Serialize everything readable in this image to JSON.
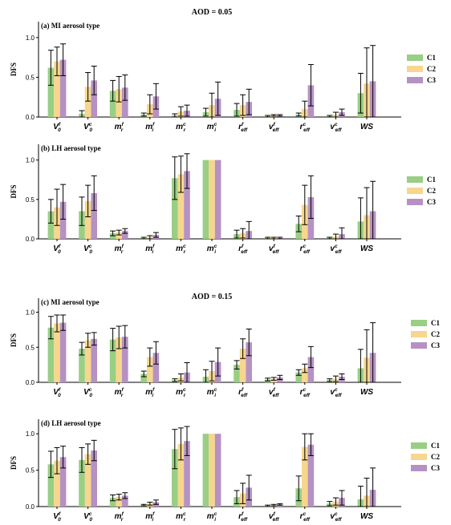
{
  "colors": {
    "C1": "#98cf84",
    "C2": "#f7d68d",
    "C3": "#b592c3"
  },
  "titles": [
    {
      "text": "AOD = 0.05"
    },
    {
      "text": "AOD = 0.15"
    }
  ],
  "chart_data": [
    {
      "type": "bar",
      "title": "(a) MI aerosol type",
      "ylabel": "DFS",
      "ylim": [
        0,
        1.2
      ],
      "yticks": [
        "0.0",
        "0.5",
        "1.0"
      ],
      "categories": [
        "V0^f",
        "V0^c",
        "mr^f",
        "mi^f",
        "mr^c",
        "mi^c",
        "reff^f",
        "veff^f",
        "reff^c",
        "veff^c",
        "WS"
      ],
      "legend": [
        "C1",
        "C2",
        "C3"
      ],
      "series": [
        {
          "name": "C1",
          "values": [
            0.62,
            0.04,
            0.33,
            0.03,
            0.02,
            0.06,
            0.09,
            0.01,
            0.03,
            0.01,
            0.3
          ],
          "errors": [
            0.22,
            0.04,
            0.13,
            0.02,
            0.02,
            0.05,
            0.08,
            0.01,
            0.02,
            0.01,
            0.25
          ]
        },
        {
          "name": "C2",
          "values": [
            0.7,
            0.38,
            0.35,
            0.16,
            0.07,
            0.15,
            0.15,
            0.02,
            0.1,
            0.03,
            0.42
          ],
          "errors": [
            0.18,
            0.18,
            0.16,
            0.12,
            0.06,
            0.15,
            0.13,
            0.01,
            0.1,
            0.03,
            0.45
          ]
        },
        {
          "name": "C3",
          "values": [
            0.72,
            0.46,
            0.37,
            0.26,
            0.08,
            0.23,
            0.19,
            0.02,
            0.4,
            0.06,
            0.45
          ],
          "errors": [
            0.2,
            0.18,
            0.16,
            0.16,
            0.07,
            0.21,
            0.16,
            0.01,
            0.26,
            0.04,
            0.45
          ]
        }
      ]
    },
    {
      "type": "bar",
      "title": "(b) LH aerosol type",
      "ylabel": "DFS",
      "ylim": [
        0,
        1.2
      ],
      "yticks": [
        "0.0",
        "0.5",
        "1.0"
      ],
      "categories": [
        "V0^f",
        "V0^c",
        "mr^f",
        "mi^f",
        "mr^c",
        "mi^c",
        "reff^f",
        "veff^f",
        "reff^c",
        "veff^c",
        "WS"
      ],
      "legend": [
        "C1",
        "C2",
        "C3"
      ],
      "series": [
        {
          "name": "C1",
          "values": [
            0.35,
            0.35,
            0.07,
            0.01,
            0.77,
            1.0,
            0.06,
            0.01,
            0.19,
            0.01,
            0.22
          ],
          "errors": [
            0.15,
            0.18,
            0.03,
            0.01,
            0.27,
            0.0,
            0.05,
            0.01,
            0.1,
            0.01,
            0.3
          ]
        },
        {
          "name": "C2",
          "values": [
            0.4,
            0.48,
            0.08,
            0.02,
            0.82,
            1.0,
            0.07,
            0.01,
            0.43,
            0.03,
            0.3
          ],
          "errors": [
            0.23,
            0.2,
            0.03,
            0.02,
            0.23,
            0.0,
            0.06,
            0.01,
            0.25,
            0.03,
            0.35
          ]
        },
        {
          "name": "C3",
          "values": [
            0.47,
            0.58,
            0.1,
            0.05,
            0.86,
            1.0,
            0.1,
            0.01,
            0.53,
            0.06,
            0.35
          ],
          "errors": [
            0.22,
            0.22,
            0.03,
            0.03,
            0.22,
            0.0,
            0.12,
            0.01,
            0.27,
            0.08,
            0.38
          ]
        }
      ]
    },
    {
      "type": "bar",
      "title": "(c) MI aerosol type",
      "ylabel": "DFS",
      "ylim": [
        0,
        1.2
      ],
      "yticks": [
        "0.0",
        "0.5",
        "1.0"
      ],
      "categories": [
        "V0^f",
        "V0^c",
        "mr^f",
        "mi^f",
        "mr^c",
        "mi^c",
        "reff^f",
        "veff^f",
        "reff^c",
        "veff^c",
        "WS"
      ],
      "legend": [
        "C1",
        "C2",
        "C3"
      ],
      "series": [
        {
          "name": "C1",
          "values": [
            0.78,
            0.48,
            0.61,
            0.12,
            0.03,
            0.08,
            0.25,
            0.04,
            0.14,
            0.03,
            0.2
          ],
          "errors": [
            0.16,
            0.09,
            0.16,
            0.04,
            0.02,
            0.1,
            0.06,
            0.02,
            0.04,
            0.02,
            0.27
          ]
        },
        {
          "name": "C2",
          "values": [
            0.84,
            0.6,
            0.64,
            0.36,
            0.07,
            0.16,
            0.48,
            0.05,
            0.2,
            0.05,
            0.35
          ],
          "errors": [
            0.12,
            0.1,
            0.16,
            0.13,
            0.05,
            0.14,
            0.14,
            0.02,
            0.06,
            0.04,
            0.4
          ]
        },
        {
          "name": "C3",
          "values": [
            0.85,
            0.62,
            0.65,
            0.42,
            0.14,
            0.29,
            0.57,
            0.07,
            0.36,
            0.08,
            0.42
          ],
          "errors": [
            0.11,
            0.09,
            0.16,
            0.16,
            0.14,
            0.2,
            0.19,
            0.03,
            0.15,
            0.04,
            0.43
          ]
        }
      ]
    },
    {
      "type": "bar",
      "title": "(d) LH aerosol type",
      "ylabel": "DFS",
      "ylim": [
        0,
        1.2
      ],
      "yticks": [
        "0.0",
        "0.5",
        "1.0"
      ],
      "categories": [
        "V0^f",
        "V0^c",
        "mr^f",
        "mi^f",
        "mr^c",
        "mi^c",
        "reff^f",
        "veff^f",
        "reff^c",
        "veff^c",
        "WS"
      ],
      "legend": [
        "C1",
        "C2",
        "C3"
      ],
      "series": [
        {
          "name": "C1",
          "values": [
            0.58,
            0.64,
            0.12,
            0.02,
            0.79,
            1.0,
            0.13,
            0.01,
            0.25,
            0.04,
            0.1
          ],
          "errors": [
            0.18,
            0.17,
            0.04,
            0.01,
            0.27,
            0.0,
            0.09,
            0.01,
            0.17,
            0.03,
            0.18
          ]
        },
        {
          "name": "C2",
          "values": [
            0.63,
            0.72,
            0.13,
            0.04,
            0.86,
            1.0,
            0.18,
            0.02,
            0.82,
            0.07,
            0.15
          ],
          "errors": [
            0.18,
            0.14,
            0.04,
            0.02,
            0.22,
            0.0,
            0.14,
            0.01,
            0.18,
            0.05,
            0.24
          ]
        },
        {
          "name": "C3",
          "values": [
            0.68,
            0.77,
            0.15,
            0.06,
            0.9,
            1.0,
            0.26,
            0.03,
            0.85,
            0.12,
            0.23
          ],
          "errors": [
            0.15,
            0.14,
            0.04,
            0.03,
            0.2,
            0.0,
            0.17,
            0.01,
            0.15,
            0.1,
            0.3
          ]
        }
      ]
    }
  ]
}
